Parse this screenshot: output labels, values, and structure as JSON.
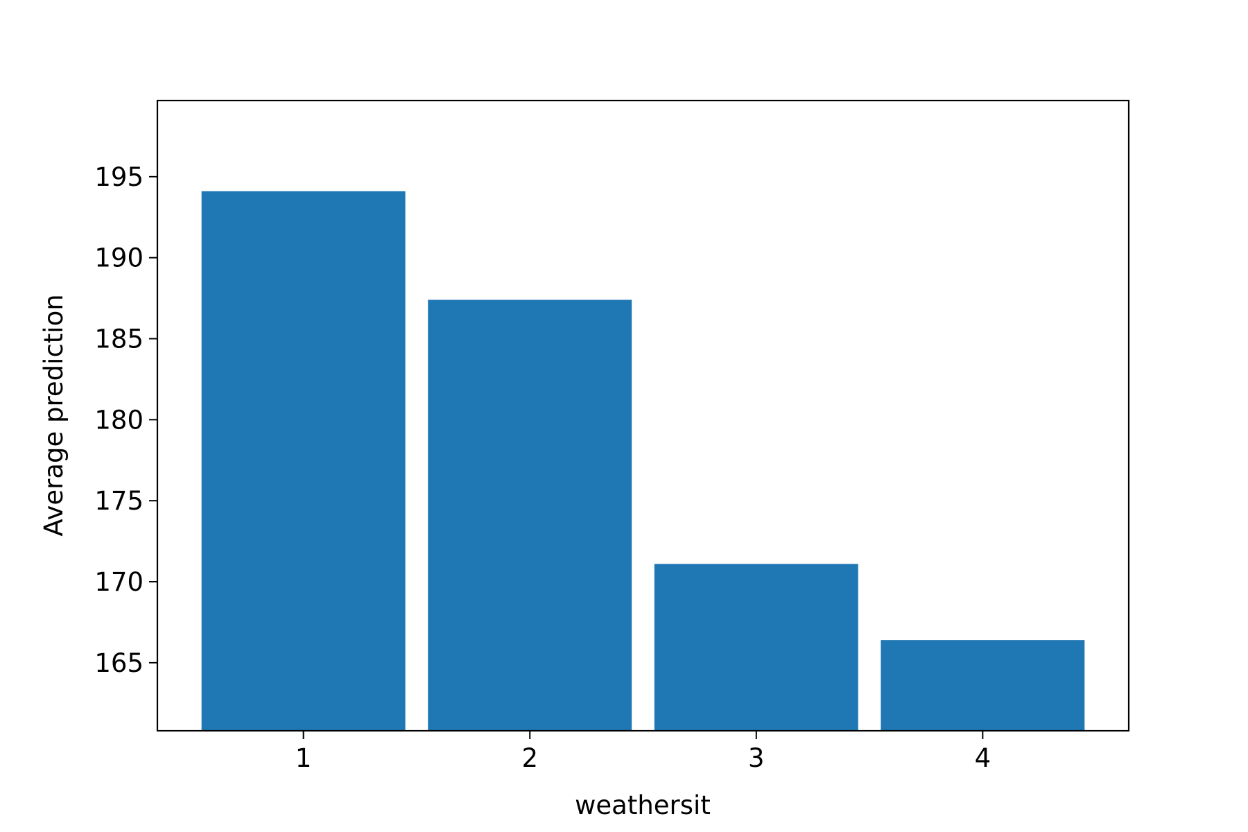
{
  "chart_data": {
    "type": "bar",
    "title": "",
    "xlabel": "weathersit",
    "ylabel": "Average prediction",
    "categories": [
      "1",
      "2",
      "3",
      "4"
    ],
    "values": [
      194.1,
      187.4,
      171.1,
      166.4
    ],
    "ylim": [
      160.8,
      199.7
    ],
    "yticks": [
      165,
      170,
      175,
      180,
      185,
      190,
      195
    ],
    "bar_color": "#1f77b4",
    "grid": false,
    "legend": "none"
  }
}
